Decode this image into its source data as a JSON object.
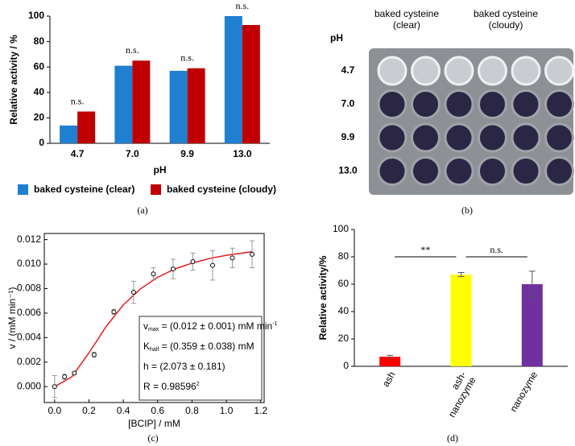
{
  "chart_data": [
    {
      "type": "bar",
      "x_label": "pH",
      "y_label": "Relative activity / %",
      "categories": [
        "4.7",
        "7.0",
        "9.9",
        "13.0"
      ],
      "series": [
        {
          "name": "baked cysteine (clear)",
          "color": "#1f7fd0",
          "values": [
            14,
            61,
            57,
            100
          ]
        },
        {
          "name": "baked cysteine (cloudy)",
          "color": "#c00000",
          "values": [
            25,
            65,
            59,
            93
          ]
        }
      ],
      "annotations": [
        "n.s.",
        "n.s.",
        "n.s.",
        "n.s."
      ],
      "ylim": [
        0,
        100
      ],
      "yticks": [
        0,
        20,
        40,
        60,
        80,
        100
      ]
    },
    {
      "type": "scatter",
      "x_label": "[BCIP] / mM",
      "y_label": "v / (mM min⁻¹)",
      "series": [
        {
          "color": "#000000",
          "error_color": "#999999",
          "x": [
            0,
            0.058,
            0.115,
            0.23,
            0.345,
            0.46,
            0.575,
            0.69,
            0.805,
            0.92,
            1.035,
            1.15
          ],
          "values": [
            0.0,
            0.0008,
            0.0011,
            0.0026,
            0.0061,
            0.0077,
            0.0092,
            0.0096,
            0.0102,
            0.0099,
            0.0105,
            0.0108
          ],
          "errors": [
            0.0009,
            0.0002,
            0.0001,
            0.0002,
            0.0002,
            0.0009,
            0.0005,
            0.0008,
            0.0007,
            0.0012,
            0.0008,
            0.0011
          ]
        },
        {
          "type": "line",
          "color": "#e41a1c",
          "x": [
            0,
            0.1,
            0.2,
            0.3,
            0.4,
            0.5,
            0.6,
            0.7,
            0.8,
            0.9,
            1.0,
            1.15
          ],
          "values": [
            0,
            0.00079,
            0.00275,
            0.0049,
            0.00667,
            0.00798,
            0.00892,
            0.0096,
            0.01008,
            0.01045,
            0.01072,
            0.01101
          ]
        }
      ],
      "fit_box": [
        [
          "v",
          "max",
          " = (0.012 ± 0.001) mM min",
          "-1"
        ],
        [
          "K",
          "half",
          " = (0.359 ± 0.038) mM"
        ],
        [
          "h = (2.073 ± 0.181)"
        ],
        [
          "R",
          "",
          " = 0.98596",
          "2"
        ]
      ],
      "xlim": [
        -0.06,
        1.22
      ],
      "xticks": [
        {
          "value": 0,
          "label": "0.0"
        },
        0.2,
        0.4,
        0.6,
        0.8,
        {
          "value": 1,
          "label": "1.0"
        },
        1.2
      ],
      "ylim": [
        -0.0013,
        0.0125
      ],
      "yticks": [
        {
          "value": 0,
          "label": "0.000"
        },
        0.002,
        0.004,
        0.006,
        0.008,
        {
          "value": 0.01,
          "label": "0.010"
        },
        0.012
      ]
    },
    {
      "type": "bar",
      "y_label": "Relative activity/%",
      "categories": [
        "ash",
        "ash-\nnanozyme",
        "nanozyme"
      ],
      "values": [
        7,
        67,
        60
      ],
      "errors": [
        1,
        1.5,
        9.5
      ],
      "colors": [
        "#ff0000",
        "#ffff00",
        "#7030a0"
      ],
      "annotations": [
        "**",
        "n.s."
      ],
      "ylim": [
        0,
        100
      ],
      "yticks": [
        0,
        20,
        40,
        60,
        80,
        100
      ]
    }
  ],
  "photo": {
    "headers": [
      "baked cysteine\n(clear)",
      "baked cysteine\n(cloudy)"
    ],
    "row_title": "pH",
    "rows": [
      "4.7",
      "7.0",
      "9.9",
      "13.0"
    ]
  },
  "captions": [
    "(a)",
    "(b)",
    "(c)",
    "(d)"
  ]
}
